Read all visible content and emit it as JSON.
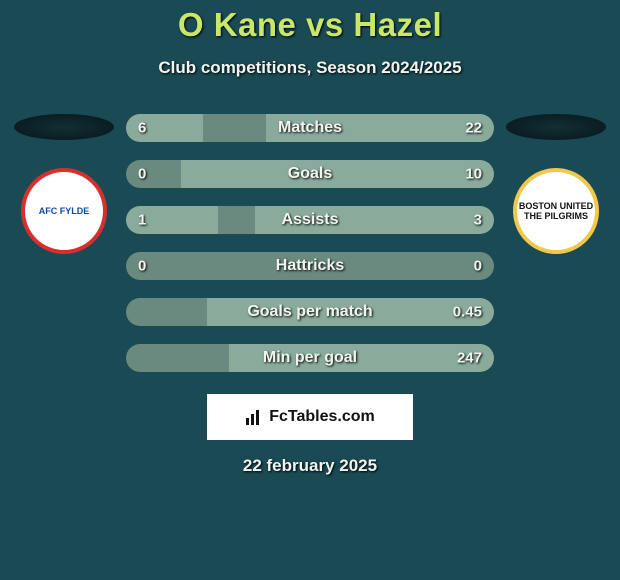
{
  "colors": {
    "background": "#1a4a54",
    "title": "#c9e86a",
    "text_light": "#f2f4f0",
    "bar_track": "#6a8a7f",
    "bar_fill": "#8aab9c",
    "shadow_top": "#122f36",
    "shadow_bot": "#0a1d22",
    "footer_bg": "#ffffff",
    "footer_text": "#111111",
    "crest_left_border": "#d72f2e",
    "crest_left_fill": "#ffffff",
    "crest_left_text": "#0a4aa0",
    "crest_right_border": "#f2c84b",
    "crest_right_fill": "#ffffff",
    "crest_right_text": "#111111"
  },
  "title": "O Kane vs Hazel",
  "subtitle": "Club competitions, Season 2024/2025",
  "footer_logo": "FcTables.com",
  "footer_date": "22 february 2025",
  "teams": {
    "left": {
      "crest_text": "AFC FYLDE"
    },
    "right": {
      "crest_text": "BOSTON UNITED THE PILGRIMS"
    }
  },
  "bars": [
    {
      "label": "Matches",
      "left": "6",
      "right": "22",
      "left_pct": 21,
      "right_pct": 62
    },
    {
      "label": "Goals",
      "left": "0",
      "right": "10",
      "left_pct": 0,
      "right_pct": 85
    },
    {
      "label": "Assists",
      "left": "1",
      "right": "3",
      "left_pct": 25,
      "right_pct": 65
    },
    {
      "label": "Hattricks",
      "left": "0",
      "right": "0",
      "left_pct": 0,
      "right_pct": 0
    },
    {
      "label": "Goals per match",
      "left": "",
      "right": "0.45",
      "left_pct": 0,
      "right_pct": 78
    },
    {
      "label": "Min per goal",
      "left": "",
      "right": "247",
      "left_pct": 0,
      "right_pct": 72
    }
  ]
}
